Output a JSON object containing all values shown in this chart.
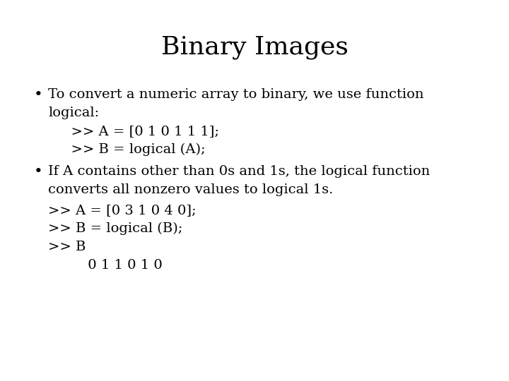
{
  "title": "Binary Images",
  "title_fontsize": 26,
  "body_fontsize": 14,
  "code_fontsize": 14,
  "background_color": "#ffffff",
  "text_color": "#000000",
  "font_family": "DejaVu Serif",
  "bullet1_line1": "To convert a numeric array to binary, we use function",
  "bullet1_line2": "logical:",
  "bullet1_code1": "  >> A = [0 1 0 1 1 1];",
  "bullet1_code2": "  >> B = logical (A);",
  "bullet2_line1": "If A contains other than 0s and 1s, the logical function",
  "bullet2_line2": "converts all nonzero values to logical 1s.",
  "bullet2_code1": ">> A = [0 3 1 0 4 0];",
  "bullet2_code2": ">> B = logical (B);",
  "bullet2_code3": ">> B",
  "bullet2_code4": "         0 1 1 0 1 0"
}
